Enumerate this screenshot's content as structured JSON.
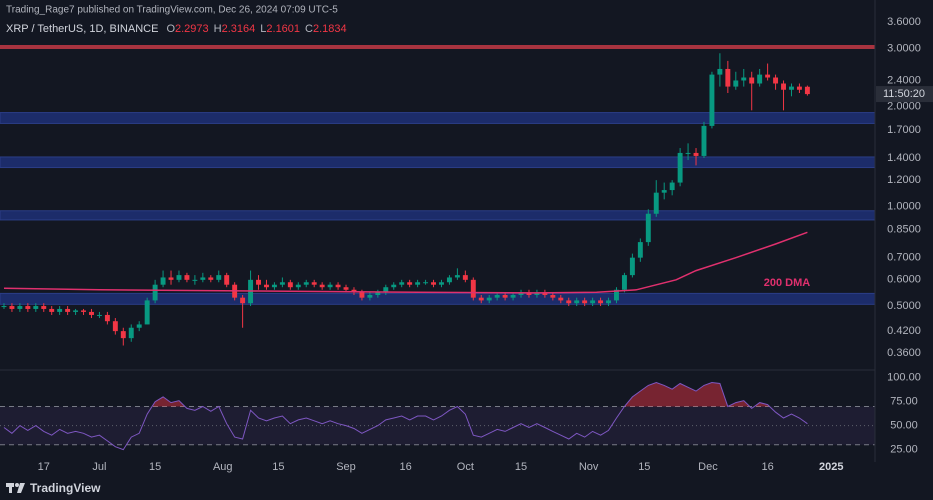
{
  "header": {
    "published": "Trading_Rage7 published on TradingView.com, Dec 26, 2024 07:09 UTC-5",
    "symbol": "XRP / TetherUS, 1D, BINANCE",
    "ohlc": [
      {
        "label": "O",
        "value": 2.2973
      },
      {
        "label": "H",
        "value": 2.3164
      },
      {
        "label": "L",
        "value": 2.1601
      },
      {
        "label": "C",
        "value": 2.1834
      }
    ]
  },
  "chart_data": {
    "type": "candlestick",
    "x": [
      -24,
      -22,
      -20,
      -18,
      -16,
      -14,
      -12,
      -10,
      -8,
      -6,
      -4,
      -2,
      0,
      2,
      4,
      6,
      8,
      10,
      12,
      14,
      16,
      18,
      20,
      22,
      24,
      26,
      28,
      30,
      32,
      34,
      36,
      38,
      40,
      42,
      44,
      46,
      48,
      50,
      52,
      54,
      56,
      58,
      60,
      62,
      64,
      66,
      68,
      70,
      72,
      74,
      76,
      78,
      80,
      82,
      84,
      86,
      88,
      90,
      92,
      94,
      96,
      98,
      100,
      102,
      104,
      106,
      108,
      110,
      112,
      114,
      116,
      118,
      120,
      122,
      124,
      126,
      128,
      130,
      132,
      134,
      136,
      138,
      140,
      142,
      144,
      146,
      148,
      150,
      152,
      154,
      156,
      158,
      160,
      162,
      164,
      166,
      168,
      170,
      172,
      174,
      176,
      178
    ],
    "open": [
      0.5,
      0.5,
      0.49,
      0.5,
      0.49,
      0.5,
      0.49,
      0.48,
      0.49,
      0.48,
      0.485,
      0.48,
      0.47,
      0.47,
      0.45,
      0.42,
      0.4,
      0.43,
      0.44,
      0.52,
      0.58,
      0.61,
      0.6,
      0.62,
      0.6,
      0.6,
      0.61,
      0.6,
      0.62,
      0.58,
      0.53,
      0.51,
      0.6,
      0.58,
      0.57,
      0.58,
      0.59,
      0.57,
      0.58,
      0.59,
      0.58,
      0.57,
      0.58,
      0.57,
      0.56,
      0.55,
      0.53,
      0.54,
      0.55,
      0.57,
      0.58,
      0.59,
      0.58,
      0.59,
      0.59,
      0.58,
      0.59,
      0.61,
      0.62,
      0.6,
      0.53,
      0.52,
      0.53,
      0.54,
      0.53,
      0.54,
      0.55,
      0.54,
      0.55,
      0.54,
      0.53,
      0.52,
      0.51,
      0.52,
      0.51,
      0.52,
      0.51,
      0.52,
      0.56,
      0.62,
      0.7,
      0.78,
      0.95,
      1.1,
      1.12,
      1.18,
      1.45,
      1.45,
      1.42,
      1.75,
      2.5,
      2.6,
      2.3,
      2.4,
      2.45,
      2.35,
      2.5,
      2.45,
      2.35,
      2.25,
      2.3,
      2.2973
    ],
    "high": [
      0.51,
      0.51,
      0.51,
      0.51,
      0.51,
      0.51,
      0.5,
      0.5,
      0.5,
      0.49,
      0.49,
      0.49,
      0.48,
      0.48,
      0.46,
      0.43,
      0.44,
      0.45,
      0.53,
      0.6,
      0.64,
      0.64,
      0.64,
      0.63,
      0.62,
      0.63,
      0.62,
      0.64,
      0.63,
      0.59,
      0.54,
      0.64,
      0.62,
      0.6,
      0.59,
      0.61,
      0.6,
      0.59,
      0.6,
      0.6,
      0.59,
      0.59,
      0.59,
      0.58,
      0.57,
      0.56,
      0.55,
      0.56,
      0.58,
      0.59,
      0.6,
      0.6,
      0.6,
      0.6,
      0.6,
      0.6,
      0.62,
      0.65,
      0.64,
      0.61,
      0.54,
      0.54,
      0.55,
      0.55,
      0.55,
      0.56,
      0.56,
      0.56,
      0.56,
      0.55,
      0.54,
      0.53,
      0.53,
      0.53,
      0.53,
      0.53,
      0.53,
      0.57,
      0.63,
      0.72,
      0.8,
      0.98,
      1.2,
      1.18,
      1.2,
      1.5,
      1.55,
      1.5,
      1.8,
      2.55,
      2.9,
      2.75,
      2.55,
      2.6,
      2.55,
      2.6,
      2.7,
      2.5,
      2.4,
      2.35,
      2.35,
      2.3164
    ],
    "low": [
      0.49,
      0.48,
      0.48,
      0.48,
      0.48,
      0.48,
      0.47,
      0.47,
      0.47,
      0.47,
      0.47,
      0.46,
      0.46,
      0.44,
      0.41,
      0.38,
      0.39,
      0.42,
      0.44,
      0.51,
      0.57,
      0.58,
      0.59,
      0.59,
      0.58,
      0.59,
      0.59,
      0.59,
      0.57,
      0.52,
      0.43,
      0.5,
      0.56,
      0.56,
      0.56,
      0.57,
      0.56,
      0.56,
      0.57,
      0.57,
      0.56,
      0.56,
      0.56,
      0.55,
      0.54,
      0.52,
      0.52,
      0.53,
      0.54,
      0.56,
      0.57,
      0.57,
      0.57,
      0.58,
      0.57,
      0.57,
      0.58,
      0.6,
      0.59,
      0.52,
      0.51,
      0.51,
      0.52,
      0.52,
      0.52,
      0.53,
      0.53,
      0.53,
      0.53,
      0.52,
      0.51,
      0.5,
      0.5,
      0.5,
      0.5,
      0.5,
      0.5,
      0.51,
      0.55,
      0.61,
      0.68,
      0.76,
      0.93,
      1.05,
      1.08,
      1.15,
      1.38,
      1.33,
      1.4,
      1.72,
      2.3,
      2.2,
      2.25,
      2.3,
      1.95,
      2.3,
      2.4,
      2.25,
      1.95,
      2.15,
      2.2,
      2.1601
    ],
    "close": [
      0.5,
      0.49,
      0.5,
      0.49,
      0.5,
      0.49,
      0.48,
      0.49,
      0.48,
      0.485,
      0.48,
      0.47,
      0.47,
      0.45,
      0.42,
      0.4,
      0.43,
      0.44,
      0.52,
      0.58,
      0.61,
      0.6,
      0.62,
      0.6,
      0.6,
      0.61,
      0.6,
      0.62,
      0.58,
      0.53,
      0.51,
      0.6,
      0.58,
      0.57,
      0.58,
      0.59,
      0.57,
      0.58,
      0.59,
      0.58,
      0.57,
      0.58,
      0.57,
      0.56,
      0.55,
      0.53,
      0.54,
      0.55,
      0.57,
      0.58,
      0.59,
      0.58,
      0.59,
      0.59,
      0.58,
      0.59,
      0.61,
      0.62,
      0.6,
      0.53,
      0.52,
      0.53,
      0.54,
      0.53,
      0.54,
      0.55,
      0.54,
      0.55,
      0.54,
      0.53,
      0.52,
      0.51,
      0.52,
      0.51,
      0.52,
      0.51,
      0.52,
      0.56,
      0.62,
      0.7,
      0.78,
      0.95,
      1.1,
      1.12,
      1.18,
      1.45,
      1.45,
      1.42,
      1.75,
      2.5,
      2.6,
      2.3,
      2.4,
      2.45,
      2.35,
      2.5,
      2.45,
      2.35,
      2.25,
      2.3,
      2.25,
      2.1834
    ],
    "colors": {
      "up": "#089981",
      "down": "#f23645"
    },
    "xlim": [
      -25,
      195
    ],
    "xticks": [
      {
        "value": -14,
        "label": "17"
      },
      {
        "value": 0,
        "label": "Jul"
      },
      {
        "value": 14,
        "label": "15"
      },
      {
        "value": 31,
        "label": "Aug"
      },
      {
        "value": 45,
        "label": "15"
      },
      {
        "value": 62,
        "label": "Sep"
      },
      {
        "value": 77,
        "label": "16"
      },
      {
        "value": 92,
        "label": "Oct"
      },
      {
        "value": 106,
        "label": "15"
      },
      {
        "value": 123,
        "label": "Nov"
      },
      {
        "value": 137,
        "label": "15"
      },
      {
        "value": 153,
        "label": "Dec"
      },
      {
        "value": 168,
        "label": "16"
      },
      {
        "value": 184,
        "label": "2025"
      }
    ],
    "ylim": [
      0.325,
      4.2
    ],
    "log_scale": true,
    "yticks": [
      {
        "value": 3.6,
        "label": "3.6000"
      },
      {
        "value": 3.0,
        "label": "3.0000"
      },
      {
        "value": 2.4,
        "label": "2.4000"
      },
      {
        "value": 2.0,
        "label": "2.0000"
      },
      {
        "value": 1.7,
        "label": "1.7000"
      },
      {
        "value": 1.4,
        "label": "1.4000"
      },
      {
        "value": 1.2,
        "label": "1.2000"
      },
      {
        "value": 1.0,
        "label": "1.0000"
      },
      {
        "value": 0.85,
        "label": "0.8500"
      },
      {
        "value": 0.7,
        "label": "0.7000"
      },
      {
        "value": 0.6,
        "label": "0.6000"
      },
      {
        "value": 0.5,
        "label": "0.5000"
      },
      {
        "value": 0.42,
        "label": "0.4200"
      },
      {
        "value": 0.36,
        "label": "0.3600"
      }
    ],
    "countdown": "11:50:20",
    "zones": [
      {
        "low": 1.78,
        "high": 1.92
      },
      {
        "low": 1.31,
        "high": 1.41
      },
      {
        "low": 0.91,
        "high": 0.97
      },
      {
        "low": 0.506,
        "high": 0.546
      }
    ],
    "zone_color": "#1c2c6a",
    "resistance": 3.03,
    "resistance_color": "#a8333f",
    "moving_average": {
      "name": "200 DMA",
      "color": "#e0306e",
      "x": [
        -24,
        0,
        40,
        80,
        110,
        125,
        135,
        145,
        150,
        160,
        170,
        178
      ],
      "values": [
        0.566,
        0.56,
        0.555,
        0.55,
        0.548,
        0.55,
        0.56,
        0.6,
        0.64,
        0.7,
        0.77,
        0.835
      ]
    },
    "rsi": {
      "color": "#7e57c2",
      "overbought_color": "#f23645",
      "values": [
        48,
        42,
        50,
        45,
        50,
        44,
        40,
        46,
        42,
        44,
        42,
        38,
        40,
        34,
        28,
        25,
        38,
        42,
        62,
        75,
        80,
        74,
        76,
        68,
        66,
        70,
        65,
        70,
        52,
        38,
        36,
        66,
        58,
        55,
        58,
        60,
        52,
        56,
        58,
        55,
        52,
        55,
        52,
        50,
        47,
        42,
        46,
        50,
        56,
        58,
        60,
        56,
        60,
        60,
        56,
        60,
        66,
        70,
        62,
        40,
        38,
        42,
        46,
        44,
        48,
        52,
        48,
        52,
        48,
        44,
        40,
        36,
        42,
        38,
        44,
        40,
        45,
        58,
        70,
        80,
        86,
        92,
        95,
        92,
        88,
        94,
        90,
        86,
        92,
        95,
        94,
        70,
        74,
        76,
        68,
        74,
        72,
        64,
        58,
        62,
        58,
        52
      ],
      "ylim": [
        12,
        106
      ],
      "yticks": [
        {
          "value": 100,
          "label": "100.00"
        },
        {
          "value": 75,
          "label": "75.00"
        },
        {
          "value": 50,
          "label": "50.00"
        },
        {
          "value": 25,
          "label": "25.00"
        }
      ],
      "band": [
        30,
        70
      ],
      "middle": 50
    }
  },
  "footer": {
    "brand": "TradingView"
  }
}
